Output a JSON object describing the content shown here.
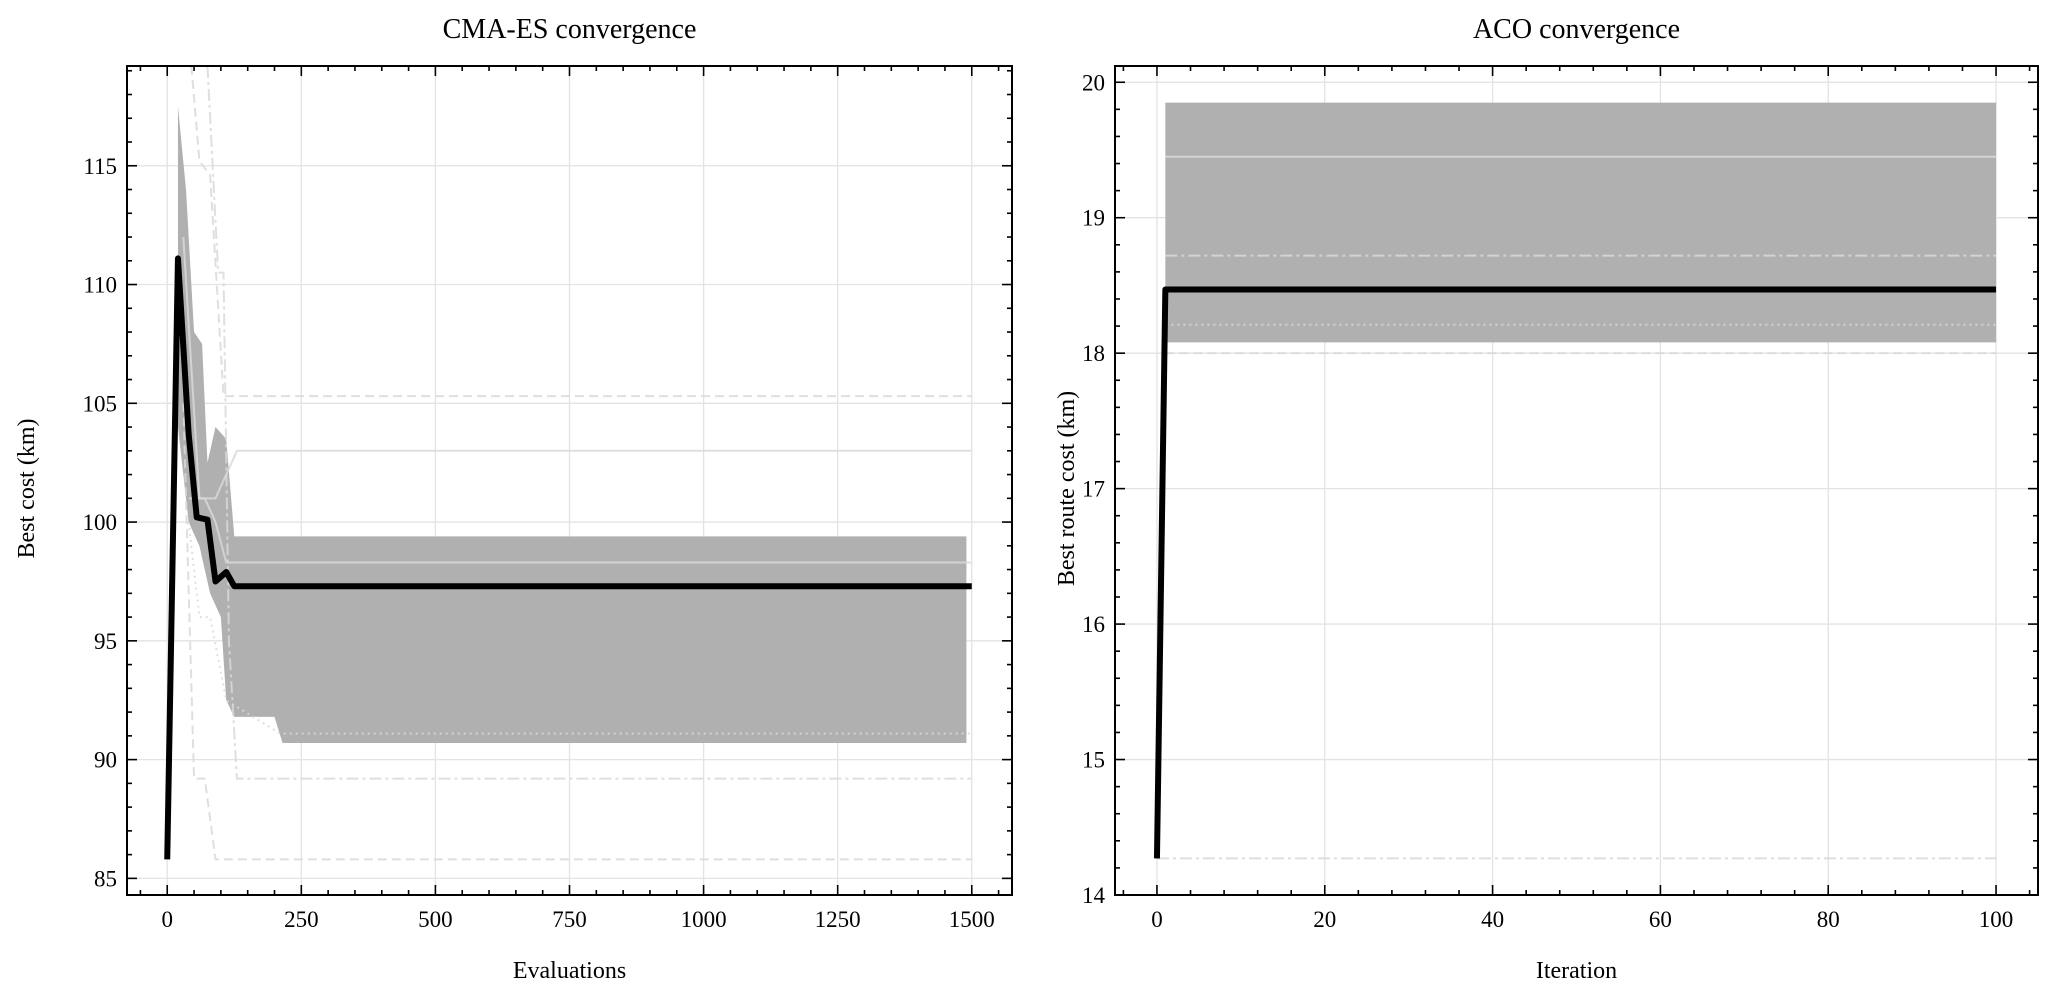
{
  "chart_data": [
    {
      "type": "line",
      "title": "CMA-ES convergence",
      "xlabel": "Evaluations",
      "ylabel": "Best cost (km)",
      "xlim": [
        -75,
        1575
      ],
      "ylim": [
        84.3,
        119.2
      ],
      "xticks": [
        0,
        250,
        500,
        750,
        1000,
        1250,
        1500
      ],
      "yticks": [
        85,
        90,
        95,
        100,
        105,
        110,
        115
      ],
      "grid": true,
      "mean": {
        "x": [
          0,
          20,
          40,
          55,
          75,
          90,
          110,
          125,
          1500
        ],
        "y": [
          85.8,
          111.1,
          103.7,
          100.2,
          100.1,
          97.5,
          97.9,
          97.3,
          97.3
        ]
      },
      "band": {
        "x_upper": [
          20,
          35,
          50,
          65,
          75,
          90,
          110,
          125,
          1490
        ],
        "upper": [
          117.5,
          114,
          108,
          107.5,
          102.5,
          104,
          103.5,
          99.4,
          99.4
        ],
        "x_lower": [
          20,
          40,
          60,
          80,
          100,
          110,
          125,
          200,
          215,
          1490
        ],
        "lower": [
          104,
          100,
          99,
          97,
          96,
          92.5,
          91.8,
          91.8,
          90.7,
          90.7
        ]
      },
      "runs": [
        {
          "style": "dashed",
          "x": [
            45,
            60,
            80,
            105,
            1500
          ],
          "y": [
            119.2,
            115.2,
            114.6,
            105.3,
            105.3
          ]
        },
        {
          "style": "dashdot",
          "x": [
            75,
            95,
            105,
            115,
            130,
            1500
          ],
          "y": [
            119.2,
            110.5,
            110.5,
            95,
            89.2,
            89.2
          ]
        },
        {
          "style": "solid",
          "x": [
            30,
            60,
            90,
            130,
            1500
          ],
          "y": [
            112,
            101,
            101,
            103,
            103
          ]
        },
        {
          "style": "solid",
          "x": [
            40,
            70,
            90,
            110,
            1500
          ],
          "y": [
            101,
            101,
            100,
            98.3,
            98.3
          ]
        },
        {
          "style": "dashed",
          "x": [
            30,
            50,
            70,
            90,
            1500
          ],
          "y": [
            105,
            89.2,
            89.2,
            85.8,
            85.8
          ]
        },
        {
          "style": "dotted",
          "x": [
            40,
            60,
            80,
            110,
            210,
            1500
          ],
          "y": [
            100,
            96,
            96,
            92.5,
            91.1,
            91.1
          ]
        }
      ]
    },
    {
      "type": "line",
      "title": "ACO convergence",
      "xlabel": "Iteration",
      "ylabel": "Best route cost (km)",
      "xlim": [
        -5,
        105
      ],
      "ylim": [
        14,
        20.12
      ],
      "xticks": [
        0,
        20,
        40,
        60,
        80,
        100
      ],
      "yticks": [
        14,
        15,
        16,
        17,
        18,
        19,
        20
      ],
      "grid": true,
      "mean": {
        "x": [
          0,
          1,
          100
        ],
        "y": [
          14.27,
          18.47,
          18.47
        ]
      },
      "band": {
        "x_upper": [
          1,
          100
        ],
        "upper": [
          19.85,
          19.85
        ],
        "x_lower": [
          1,
          100
        ],
        "lower": [
          18.08,
          18.08
        ]
      },
      "runs": [
        {
          "style": "solid",
          "x": [
            1,
            100
          ],
          "y": [
            19.45,
            19.45
          ]
        },
        {
          "style": "dashdot",
          "x": [
            1,
            100
          ],
          "y": [
            18.72,
            18.72
          ]
        },
        {
          "style": "dotted",
          "x": [
            1,
            100
          ],
          "y": [
            18.21,
            18.21
          ]
        },
        {
          "style": "dashed",
          "x": [
            1,
            100
          ],
          "y": [
            18.0,
            18.0
          ]
        },
        {
          "style": "dashdot",
          "x": [
            0,
            100
          ],
          "y": [
            14.27,
            14.27
          ]
        }
      ]
    }
  ],
  "colors": {
    "mean": "#000000",
    "band": "#b0b0b0",
    "runs": "#d9d9d9",
    "grid": "#e3e3e3"
  }
}
